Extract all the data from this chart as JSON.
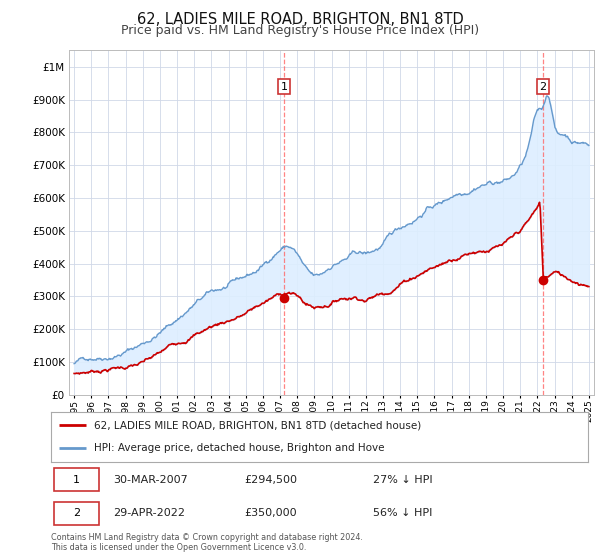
{
  "title": "62, LADIES MILE ROAD, BRIGHTON, BN1 8TD",
  "subtitle": "Price paid vs. HM Land Registry's House Price Index (HPI)",
  "title_fontsize": 10.5,
  "subtitle_fontsize": 9,
  "background_color": "#ffffff",
  "grid_color": "#d0d8e8",
  "chart_fill_color": "#ddeeff",
  "hpi_color": "#6699cc",
  "price_color": "#cc0000",
  "sale1_x": 2007.23,
  "sale1_y": 294500,
  "sale2_x": 2022.33,
  "sale2_y": 350000,
  "legend_line1": "62, LADIES MILE ROAD, BRIGHTON, BN1 8TD (detached house)",
  "legend_line2": "HPI: Average price, detached house, Brighton and Hove",
  "table_row1": [
    "1",
    "30-MAR-2007",
    "£294,500",
    "27% ↓ HPI"
  ],
  "table_row2": [
    "2",
    "29-APR-2022",
    "£350,000",
    "56% ↓ HPI"
  ],
  "footnote1": "Contains HM Land Registry data © Crown copyright and database right 2024.",
  "footnote2": "This data is licensed under the Open Government Licence v3.0.",
  "ylim": [
    0,
    1050000
  ],
  "xlim_start": 1994.7,
  "xlim_end": 2025.3
}
